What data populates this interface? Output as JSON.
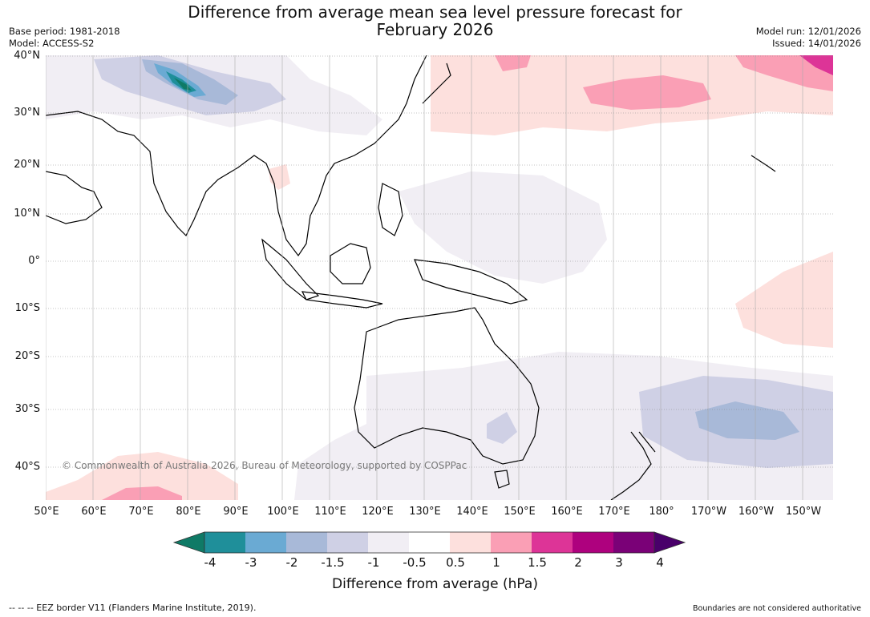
{
  "title": {
    "line1": "Difference from average mean sea level pressure forecast for",
    "line2": "February 2026"
  },
  "meta": {
    "base_period": "Base period: 1981-2018",
    "model": "Model: ACCESS-S2",
    "model_run": "Model run: 12/01/2026",
    "issued": "Issued: 14/01/2026"
  },
  "axes": {
    "lat_labels": [
      "40°N",
      "30°N",
      "20°N",
      "10°N",
      "0°",
      "10°S",
      "20°S",
      "30°S",
      "40°S"
    ],
    "lon_labels": [
      "50°E",
      "60°E",
      "70°E",
      "80°E",
      "90°E",
      "100°E",
      "110°E",
      "120°E",
      "130°E",
      "140°E",
      "150°E",
      "160°E",
      "170°E",
      "180°",
      "170°W",
      "160°W",
      "150°W"
    ]
  },
  "colorbar": {
    "ticks": [
      "-4",
      "-3",
      "-2",
      "-1.5",
      "-1",
      "-0.5",
      "0.5",
      "1",
      "1.5",
      "2",
      "3",
      "4"
    ],
    "colors": [
      "#0f7a66",
      "#1f8f9a",
      "#6aaad3",
      "#a8b9d8",
      "#cfd0e5",
      "#f1eef4",
      "#ffffff",
      "#fde0dd",
      "#fa9fb5",
      "#dd3497",
      "#ae017e",
      "#7a0177",
      "#49006a"
    ],
    "label": "Difference from average (hPa)"
  },
  "footer": {
    "eez": "--  --  -- EEZ border V11 (Flanders Marine Institute, 2019).",
    "boundaries": "Boundaries are not considered authoritative",
    "copyright": "© Commonwealth of Australia 2026, Bureau of Meteorology, supported by COSPPac"
  }
}
